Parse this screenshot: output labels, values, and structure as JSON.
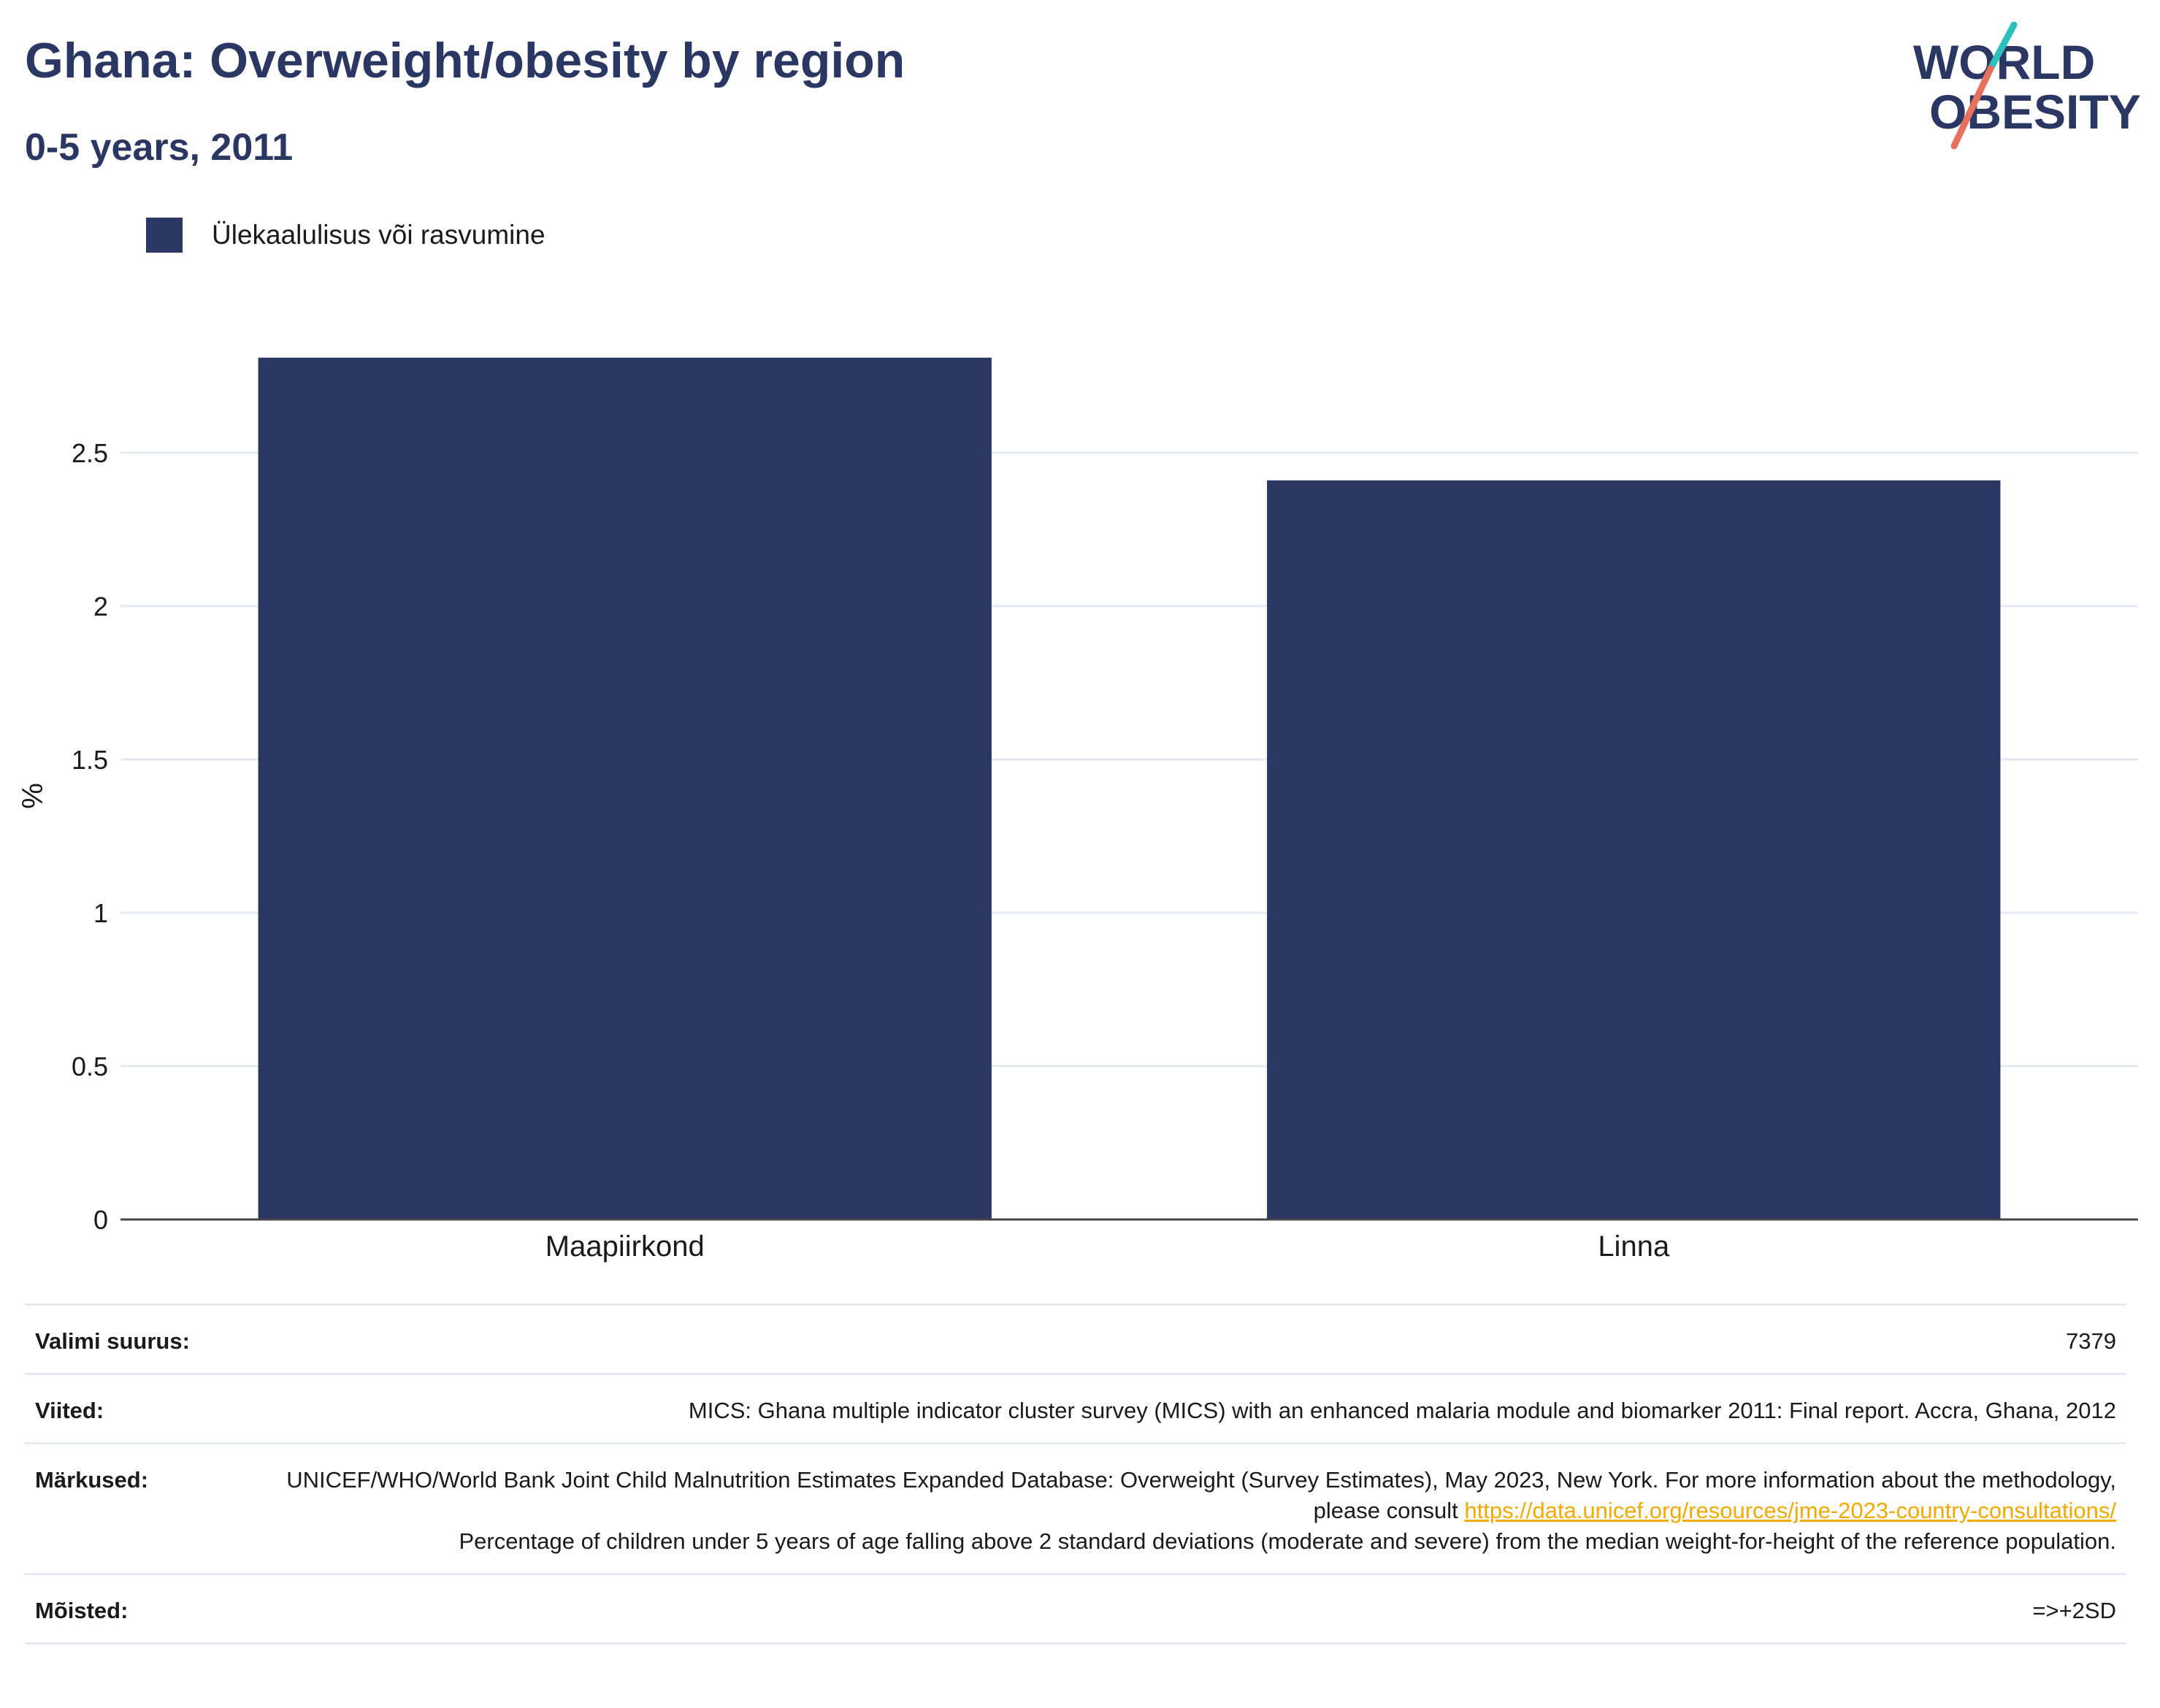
{
  "title": "Ghana: Overweight/obesity by region",
  "subtitle": "0-5 years, 2011",
  "logo": {
    "line1": "WORLD",
    "line2": "OBESITY"
  },
  "colors": {
    "bar": "#2b3763",
    "title": "#2b3763",
    "link": "#f2a900",
    "logo_teal": "#2bbfbd",
    "logo_coral": "#e8705f"
  },
  "chart_data": {
    "type": "bar",
    "categories": [
      "Maapiirkond",
      "Linna"
    ],
    "series": [
      {
        "name": "Ülekaalulisus või rasvumine",
        "values": [
          2.81,
          2.41
        ]
      }
    ],
    "ylabel": "%",
    "xlabel": "",
    "ylim": [
      0,
      3.0
    ],
    "yticks": [
      0,
      0.5,
      1,
      1.5,
      2,
      2.5
    ],
    "ytick_labels": [
      "0",
      "0.5",
      "1",
      "1.5",
      "2",
      "2.5"
    ],
    "grid": true,
    "legend_position": "top-left"
  },
  "info": {
    "sample_label": "Valimi suurus:",
    "sample_value": "7379",
    "references_label": "Viited:",
    "references_value": "MICS: Ghana multiple indicator cluster survey (MICS) with an enhanced malaria module and biomarker 2011: Final report. Accra, Ghana, 2012",
    "notes_label": "Märkused:",
    "notes_text1": "UNICEF/WHO/World Bank Joint Child Malnutrition Estimates Expanded Database: Overweight (Survey Estimates), May 2023, New York. For more information about the methodology, please consult ",
    "notes_link": "https://data.unicef.org/resources/jme-2023-country-consultations/",
    "notes_text2": "Percentage of children under 5 years of age falling above 2 standard deviations (moderate and severe) from the median weight-for-height of the reference population.",
    "definitions_label": "Mõisted:",
    "definitions_value": "=>+2SD"
  }
}
